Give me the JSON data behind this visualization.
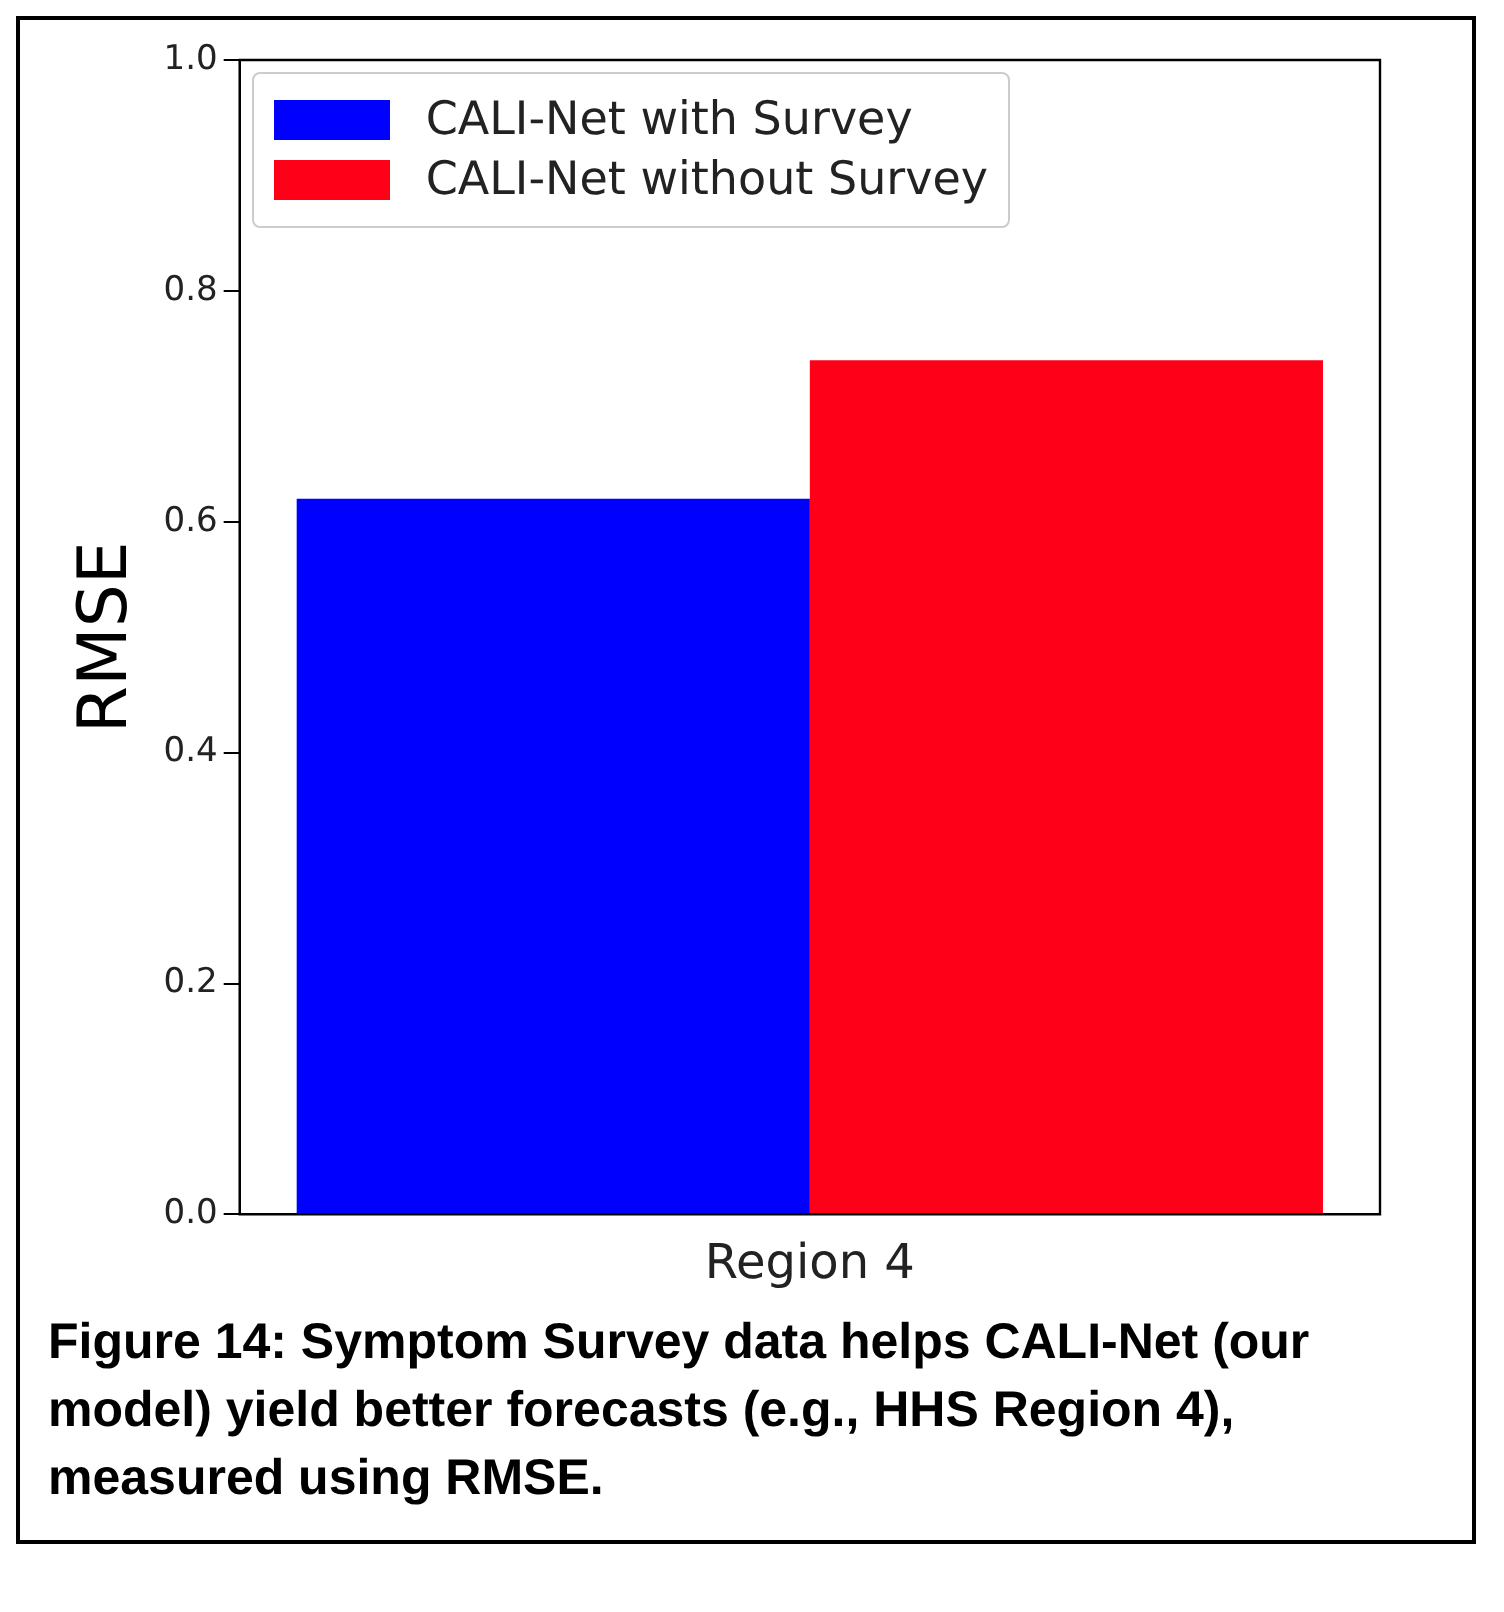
{
  "chart_data": {
    "type": "bar",
    "categories": [
      "Region 4"
    ],
    "series": [
      {
        "name": "CALI-Net with Survey",
        "color": "#0000ff",
        "values": [
          0.62
        ]
      },
      {
        "name": "CALI-Net without Survey",
        "color": "#ff0019",
        "values": [
          0.74
        ]
      }
    ],
    "ylabel": "RMSE",
    "ylim": [
      0,
      1
    ],
    "yticks": [
      {
        "value": 0,
        "label": "0.0"
      },
      {
        "value": 0.2,
        "label": "0.2"
      },
      {
        "value": 0.4,
        "label": "0.4"
      },
      {
        "value": 0.6,
        "label": "0.6"
      },
      {
        "value": 0.8,
        "label": "0.8"
      },
      {
        "value": 1,
        "label": "1.0"
      }
    ],
    "grid": false,
    "legend": "top left",
    "annotations": [
      "Figure 14: Symptom Survey data helps CALI-Net (our model) yield better forecasts (e.g., HHS Region 4), measured using RMSE."
    ]
  }
}
